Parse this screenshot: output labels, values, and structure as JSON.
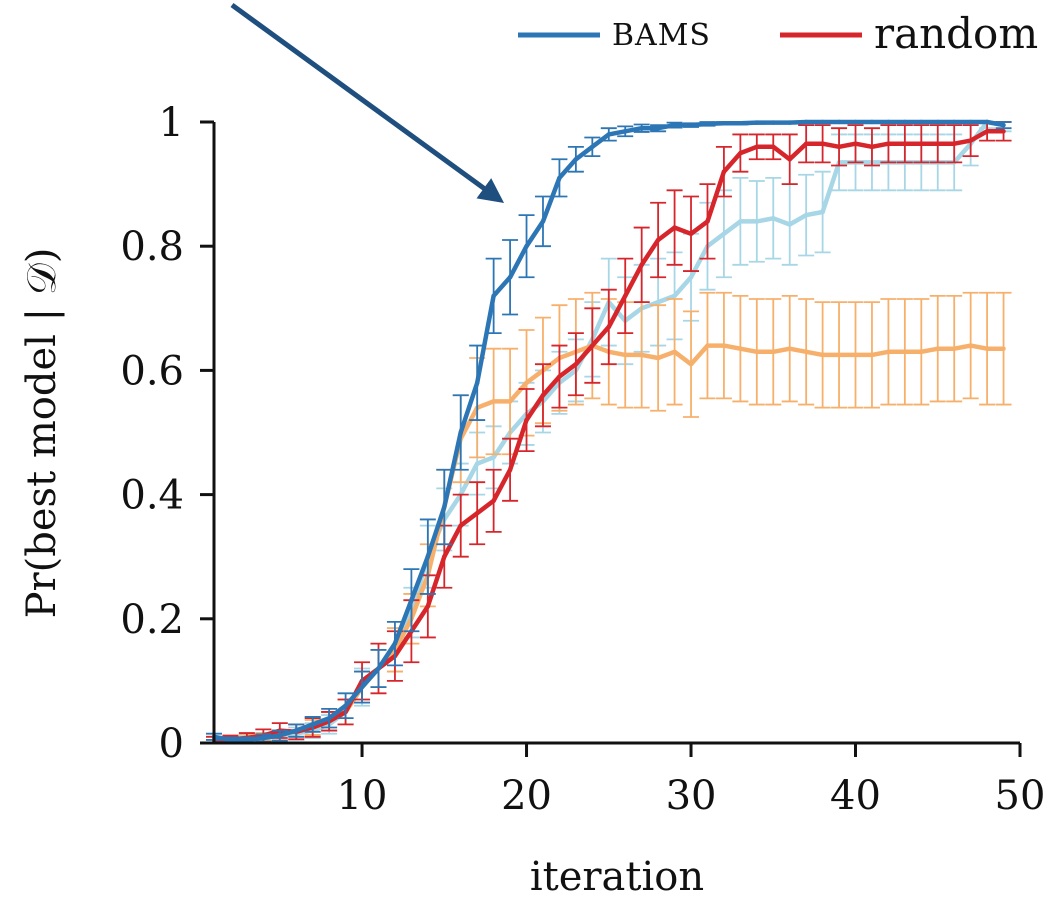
{
  "chart_data": {
    "type": "line",
    "xlabel": "iteration",
    "ylabel": "Pr(best model | 𝒟)",
    "xlim": [
      1,
      50
    ],
    "ylim": [
      0,
      1
    ],
    "x_ticks": [
      10,
      20,
      30,
      40,
      50
    ],
    "x_tick_labels": [
      "10",
      "20",
      "30",
      "40",
      "50"
    ],
    "y_ticks": [
      0,
      0.2,
      0.4,
      0.6,
      0.8,
      1
    ],
    "y_tick_labels": [
      "0",
      "0.2",
      "0.4",
      "0.6",
      "0.8",
      "1"
    ],
    "grid": false,
    "legend_position": "top-right",
    "annotation": "arrow pointing to the BAMS curve near iteration 19",
    "x": [
      1,
      2,
      3,
      4,
      5,
      6,
      7,
      8,
      9,
      10,
      11,
      12,
      13,
      14,
      15,
      16,
      17,
      18,
      19,
      20,
      21,
      22,
      23,
      24,
      25,
      26,
      27,
      28,
      29,
      30,
      31,
      32,
      33,
      34,
      35,
      36,
      37,
      38,
      39,
      40,
      41,
      42,
      43,
      44,
      45,
      46,
      47,
      48,
      49
    ],
    "series": [
      {
        "name": "BAMS",
        "color": "#2d76b5",
        "in_legend": true,
        "values": [
          0.01,
          0.005,
          0.005,
          0.008,
          0.012,
          0.02,
          0.03,
          0.04,
          0.06,
          0.09,
          0.12,
          0.16,
          0.23,
          0.3,
          0.38,
          0.5,
          0.58,
          0.72,
          0.75,
          0.8,
          0.84,
          0.91,
          0.94,
          0.96,
          0.98,
          0.985,
          0.99,
          0.99,
          0.995,
          0.995,
          0.997,
          0.998,
          0.998,
          0.999,
          0.999,
          0.999,
          1,
          1,
          1,
          1,
          1,
          1,
          1,
          1,
          1,
          1,
          1,
          1,
          0.995
        ],
        "errors": [
          0.005,
          0.004,
          0.004,
          0.006,
          0.008,
          0.01,
          0.012,
          0.015,
          0.02,
          0.025,
          0.03,
          0.035,
          0.05,
          0.06,
          0.06,
          0.06,
          0.06,
          0.06,
          0.06,
          0.05,
          0.04,
          0.03,
          0.02,
          0.015,
          0.01,
          0.008,
          0.006,
          0.005,
          0.004,
          0.003,
          0.003,
          0.002,
          0.002,
          0.002,
          0.001,
          0.001,
          0.001,
          0.001,
          0.001,
          0.001,
          0.001,
          0.001,
          0.001,
          0.001,
          0.001,
          0.001,
          0.001,
          0.001,
          0.005
        ]
      },
      {
        "name": "random",
        "color": "#d6262b",
        "in_legend": true,
        "values": [
          0.005,
          0.006,
          0.008,
          0.012,
          0.02,
          0.018,
          0.025,
          0.035,
          0.05,
          0.1,
          0.12,
          0.14,
          0.18,
          0.22,
          0.3,
          0.35,
          0.37,
          0.39,
          0.44,
          0.52,
          0.56,
          0.59,
          0.61,
          0.64,
          0.67,
          0.72,
          0.77,
          0.81,
          0.83,
          0.82,
          0.84,
          0.92,
          0.95,
          0.96,
          0.96,
          0.94,
          0.965,
          0.965,
          0.96,
          0.965,
          0.96,
          0.965,
          0.965,
          0.965,
          0.965,
          0.965,
          0.97,
          0.985,
          0.985
        ],
        "errors": [
          0.005,
          0.006,
          0.008,
          0.01,
          0.012,
          0.012,
          0.015,
          0.015,
          0.02,
          0.03,
          0.04,
          0.04,
          0.05,
          0.05,
          0.05,
          0.05,
          0.05,
          0.05,
          0.05,
          0.05,
          0.05,
          0.05,
          0.05,
          0.06,
          0.06,
          0.06,
          0.06,
          0.06,
          0.06,
          0.06,
          0.06,
          0.04,
          0.03,
          0.02,
          0.02,
          0.04,
          0.03,
          0.03,
          0.03,
          0.03,
          0.03,
          0.03,
          0.03,
          0.03,
          0.03,
          0.03,
          0.025,
          0.015,
          0.015
        ]
      },
      {
        "name": "",
        "color": "#f7b06b",
        "in_legend": false,
        "values": [
          0.005,
          0.006,
          0.008,
          0.01,
          0.012,
          0.02,
          0.025,
          0.035,
          0.05,
          0.09,
          0.12,
          0.15,
          0.2,
          0.27,
          0.38,
          0.49,
          0.54,
          0.55,
          0.55,
          0.58,
          0.6,
          0.62,
          0.63,
          0.64,
          0.63,
          0.625,
          0.625,
          0.62,
          0.63,
          0.61,
          0.64,
          0.64,
          0.635,
          0.63,
          0.63,
          0.635,
          0.63,
          0.625,
          0.625,
          0.625,
          0.625,
          0.63,
          0.63,
          0.63,
          0.635,
          0.635,
          0.64,
          0.635,
          0.635
        ],
        "errors": [
          0.005,
          0.005,
          0.006,
          0.006,
          0.008,
          0.01,
          0.012,
          0.015,
          0.02,
          0.025,
          0.03,
          0.035,
          0.04,
          0.05,
          0.06,
          0.07,
          0.08,
          0.085,
          0.085,
          0.085,
          0.085,
          0.085,
          0.085,
          0.085,
          0.085,
          0.085,
          0.085,
          0.085,
          0.085,
          0.085,
          0.085,
          0.085,
          0.085,
          0.085,
          0.085,
          0.085,
          0.085,
          0.085,
          0.085,
          0.085,
          0.085,
          0.085,
          0.085,
          0.085,
          0.085,
          0.085,
          0.085,
          0.09,
          0.09
        ]
      },
      {
        "name": "",
        "color": "#a7d6e6",
        "in_legend": false,
        "values": [
          0.01,
          0.005,
          0.008,
          0.01,
          0.012,
          0.015,
          0.02,
          0.03,
          0.05,
          0.09,
          0.12,
          0.15,
          0.21,
          0.3,
          0.36,
          0.4,
          0.45,
          0.46,
          0.5,
          0.53,
          0.55,
          0.58,
          0.6,
          0.65,
          0.71,
          0.68,
          0.7,
          0.71,
          0.72,
          0.75,
          0.8,
          0.82,
          0.84,
          0.84,
          0.845,
          0.835,
          0.85,
          0.855,
          0.935,
          0.935,
          0.935,
          0.935,
          0.935,
          0.935,
          0.935,
          0.935,
          0.965,
          1.0,
          0.995
        ],
        "errors": [
          0.005,
          0.005,
          0.005,
          0.006,
          0.008,
          0.01,
          0.012,
          0.015,
          0.02,
          0.03,
          0.03,
          0.035,
          0.04,
          0.05,
          0.05,
          0.05,
          0.05,
          0.05,
          0.05,
          0.05,
          0.05,
          0.05,
          0.05,
          0.06,
          0.07,
          0.07,
          0.07,
          0.07,
          0.07,
          0.07,
          0.07,
          0.07,
          0.07,
          0.065,
          0.065,
          0.065,
          0.065,
          0.065,
          0.045,
          0.045,
          0.045,
          0.045,
          0.045,
          0.045,
          0.045,
          0.045,
          0.035,
          0.01,
          0.01
        ]
      }
    ]
  }
}
